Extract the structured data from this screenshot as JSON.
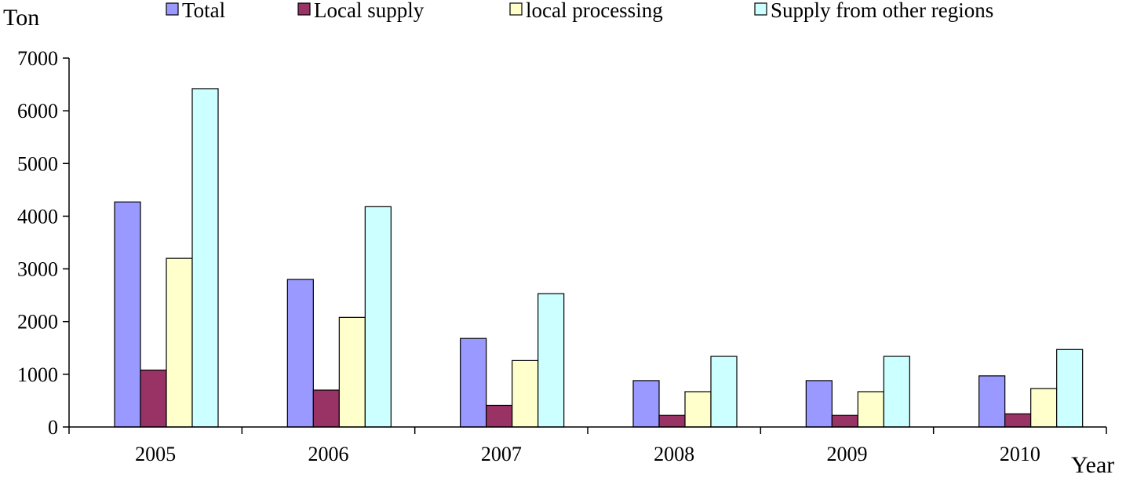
{
  "chart_data": {
    "type": "bar",
    "ylabel": "Ton",
    "xlabel": "Year",
    "categories": [
      "2005",
      "2006",
      "2007",
      "2008",
      "2009",
      "2010"
    ],
    "ylim": [
      0,
      7000
    ],
    "yticks": [
      "0",
      "1000",
      "2000",
      "3000",
      "4000",
      "5000",
      "6000",
      "7000"
    ],
    "grid": false,
    "legend_position": "top",
    "series": [
      {
        "name": "Total",
        "color": "#9999ff",
        "values": [
          4270,
          2800,
          1680,
          880,
          880,
          970
        ]
      },
      {
        "name": "Local supply",
        "color": "#993366",
        "values": [
          1080,
          700,
          410,
          220,
          220,
          250
        ]
      },
      {
        "name": "local processing",
        "color": "#ffffcc",
        "values": [
          3200,
          2080,
          1260,
          670,
          670,
          730
        ]
      },
      {
        "name": "Supply from other regions",
        "color": "#ccffff",
        "values": [
          6420,
          4180,
          2530,
          1340,
          1340,
          1470
        ]
      }
    ]
  }
}
